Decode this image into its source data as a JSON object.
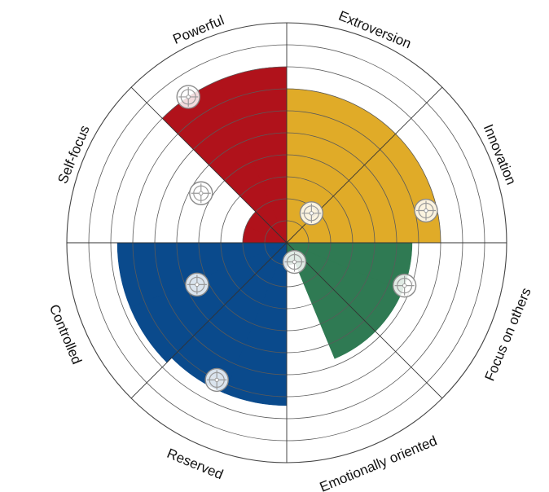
{
  "chart_data": {
    "type": "polar-area",
    "rings": 10,
    "axes": [
      {
        "label": "Extroversion"
      },
      {
        "label": "Innovation"
      },
      {
        "label": "Focus on others"
      },
      {
        "label": "Emotionally oriented"
      },
      {
        "label": "Reserved"
      },
      {
        "label": "Controlled"
      },
      {
        "label": "Self-focus"
      },
      {
        "label": "Powerful"
      }
    ],
    "quadrants": [
      {
        "color": "#e0ab28",
        "start_deg": 0,
        "end_deg": 90,
        "outer": [
          7.0,
          7.0
        ],
        "inner": 0
      },
      {
        "color": "#2f7a53",
        "start_deg": 90,
        "end_deg": 180,
        "outer": [
          5.7,
          5.7,
          5.7,
          1.0
        ],
        "inner": 0
      },
      {
        "color": "#0a4a8c",
        "start_deg": 180,
        "end_deg": 270,
        "outer": [
          7.4,
          7.4,
          7.7,
          7.7
        ],
        "inner": 0
      },
      {
        "color": "#b0121b",
        "start_deg": 270,
        "end_deg": 360,
        "outer": [
          2.0,
          2.0,
          8.0,
          8.0
        ],
        "inner": 0
      }
    ],
    "markers": [
      {
        "angle_deg": 40,
        "r": 1.75
      },
      {
        "angle_deg": 77,
        "r": 6.5
      },
      {
        "angle_deg": 110,
        "r": 5.7
      },
      {
        "angle_deg": 158,
        "r": 0.94
      },
      {
        "angle_deg": 207,
        "r": 7.0
      },
      {
        "angle_deg": 245,
        "r": 4.5
      },
      {
        "angle_deg": 300,
        "r": 4.5
      },
      {
        "angle_deg": 326,
        "r": 8.0
      }
    ]
  }
}
